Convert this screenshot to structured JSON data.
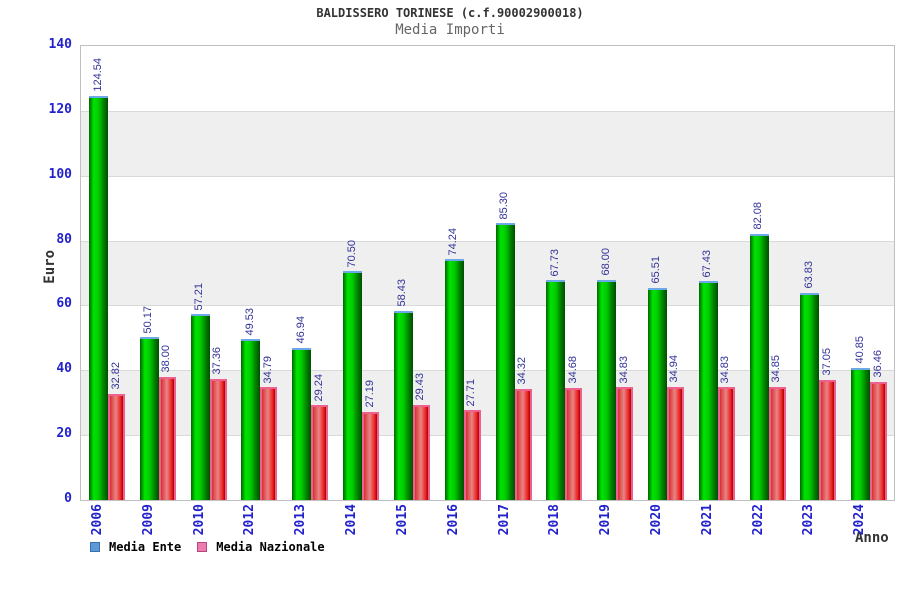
{
  "title": "BALDISSERO TORINESE (c.f.90002900018)",
  "subtitle": "Media Importi",
  "chart_data": {
    "type": "bar",
    "title": "BALDISSERO TORINESE (c.f.90002900018)",
    "subtitle": "Media Importi",
    "xlabel": "Anno",
    "ylabel": "Euro",
    "ylim": [
      0,
      140
    ],
    "yticks": [
      0,
      20,
      40,
      60,
      80,
      100,
      120,
      140
    ],
    "grid": "horizontal gridlines every 20 units with alternating light-gray bands",
    "legend_position": "bottom-left",
    "value_labels": "rotated 90deg above each bar, two decimals",
    "categories": [
      "2006",
      "2009",
      "2010",
      "2012",
      "2013",
      "2014",
      "2015",
      "2016",
      "2017",
      "2018",
      "2019",
      "2020",
      "2021",
      "2022",
      "2023",
      "2024"
    ],
    "series": [
      {
        "name": "Media Ente",
        "legend_color": "#5b9bd5",
        "values": [
          124.54,
          50.17,
          57.21,
          49.53,
          46.94,
          70.5,
          58.43,
          74.24,
          85.3,
          67.73,
          68.0,
          65.51,
          67.43,
          82.08,
          63.83,
          40.85
        ]
      },
      {
        "name": "Media Nazionale",
        "legend_color": "#ee7bb0",
        "values": [
          32.82,
          38.0,
          37.36,
          34.79,
          29.24,
          27.19,
          29.43,
          27.71,
          34.32,
          34.68,
          34.83,
          34.94,
          34.83,
          34.85,
          37.05,
          36.46
        ]
      }
    ]
  },
  "colors": {
    "tick_label": "#2222cc",
    "value_label": "#333399",
    "title_text": "#333333",
    "subtitle_text": "#666666",
    "plot_border": "#c0c0c0",
    "band_gray": "#efefef",
    "gridline": "#d9d9d9",
    "green_gradient": [
      "#006600",
      "#00e400",
      "#00cc00",
      "#008000",
      "#004d00"
    ],
    "green_cap": "#6fa8e8",
    "red_gradient": [
      "#d83030",
      "#e88585",
      "#ee2222",
      "#a50000"
    ],
    "red_outline": "#ee6090",
    "legend_blue_border": "#3b6faf",
    "legend_pink_border": "#b4487e"
  }
}
